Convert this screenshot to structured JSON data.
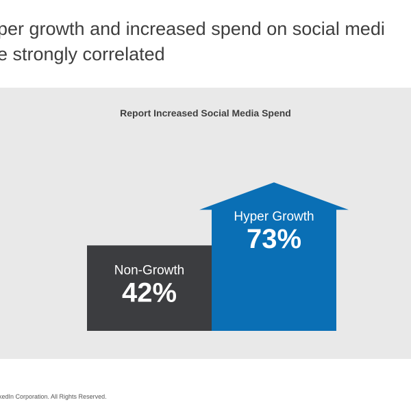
{
  "headline": {
    "line1": "per growth and increased spend on social medi",
    "line2": "e strongly correlated"
  },
  "footer": {
    "text": "kedIn Corporation. All Rights Reserved."
  },
  "chart_data": {
    "type": "bar",
    "title": "Report Increased Social Media Spend",
    "categories": [
      "Non-Growth",
      "Hyper Growth"
    ],
    "values": [
      42,
      73
    ],
    "value_labels": [
      "42%",
      "73%"
    ],
    "unit": "%",
    "colors": [
      "#3c3d40",
      "#0a6fb5"
    ],
    "highlight_shape": "arrow-up",
    "grid": false,
    "legend": "none"
  }
}
